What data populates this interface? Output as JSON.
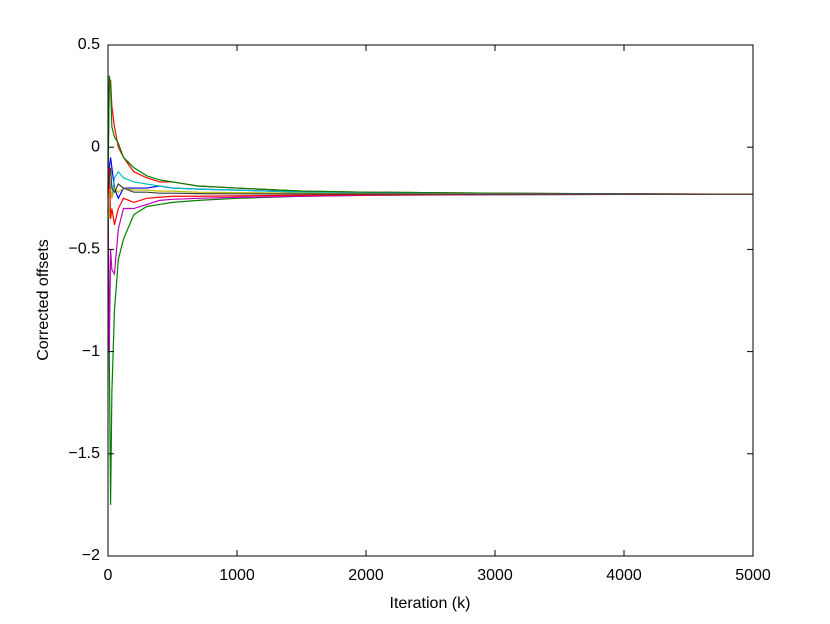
{
  "chart_data": {
    "type": "line",
    "x_label": "Iteration (k)",
    "y_label": "Corrected offsets",
    "x": [
      0,
      10,
      20,
      30,
      50,
      80,
      120,
      200,
      300,
      400,
      500,
      700,
      1000,
      1500,
      2000,
      3000,
      4000,
      5000
    ],
    "series": [
      {
        "color": "#008000",
        "values": [
          -0.2,
          -1.0,
          -1.75,
          -1.2,
          -0.8,
          -0.55,
          -0.45,
          -0.33,
          -0.29,
          -0.28,
          -0.27,
          -0.26,
          -0.25,
          -0.24,
          -0.235,
          -0.232,
          -0.231,
          -0.23
        ]
      },
      {
        "color": "#ff0000",
        "values": [
          -0.1,
          0.3,
          0.33,
          0.2,
          0.1,
          0.0,
          -0.05,
          -0.12,
          -0.15,
          -0.17,
          -0.17,
          -0.19,
          -0.2,
          -0.215,
          -0.22,
          -0.225,
          -0.228,
          -0.23
        ]
      },
      {
        "color": "#008000",
        "values": [
          -0.2,
          0.35,
          0.3,
          0.1,
          0.05,
          0.02,
          -0.05,
          -0.1,
          -0.14,
          -0.16,
          -0.17,
          -0.19,
          -0.2,
          -0.215,
          -0.22,
          -0.225,
          -0.228,
          -0.23
        ]
      },
      {
        "color": "#bf00bf",
        "values": [
          -0.3,
          -1.0,
          -0.5,
          -0.6,
          -0.62,
          -0.4,
          -0.3,
          -0.3,
          -0.28,
          -0.26,
          -0.255,
          -0.25,
          -0.245,
          -0.24,
          -0.235,
          -0.232,
          -0.231,
          -0.23
        ]
      },
      {
        "color": "#0000ff",
        "values": [
          -0.2,
          -0.1,
          -0.05,
          -0.1,
          -0.2,
          -0.25,
          -0.2,
          -0.2,
          -0.2,
          -0.19,
          -0.2,
          -0.205,
          -0.21,
          -0.22,
          -0.225,
          -0.228,
          -0.229,
          -0.23
        ]
      },
      {
        "color": "#00bfbf",
        "values": [
          -0.2,
          -0.15,
          -0.2,
          -0.25,
          -0.15,
          -0.12,
          -0.15,
          -0.17,
          -0.18,
          -0.19,
          -0.2,
          -0.205,
          -0.21,
          -0.22,
          -0.225,
          -0.228,
          -0.229,
          -0.23
        ]
      },
      {
        "color": "#bfbf00",
        "values": [
          -0.3,
          -0.35,
          -0.2,
          -0.25,
          -0.2,
          -0.22,
          -0.2,
          -0.21,
          -0.21,
          -0.215,
          -0.215,
          -0.22,
          -0.222,
          -0.225,
          -0.227,
          -0.229,
          -0.23,
          -0.23
        ]
      },
      {
        "color": "#ff0000",
        "values": [
          -0.25,
          -0.1,
          -0.35,
          -0.3,
          -0.38,
          -0.3,
          -0.25,
          -0.27,
          -0.25,
          -0.245,
          -0.24,
          -0.24,
          -0.238,
          -0.235,
          -0.233,
          -0.231,
          -0.23,
          -0.23
        ]
      },
      {
        "color": "#404040",
        "values": [
          -0.2,
          -0.15,
          -0.1,
          -0.2,
          -0.22,
          -0.18,
          -0.2,
          -0.22,
          -0.22,
          -0.225,
          -0.225,
          -0.227,
          -0.228,
          -0.229,
          -0.229,
          -0.23,
          -0.23,
          -0.23
        ]
      }
    ],
    "xlim": [
      0,
      5000
    ],
    "xticks": [
      0,
      1000,
      2000,
      3000,
      4000,
      5000
    ],
    "ylim": [
      -2,
      0.5
    ],
    "yticks": [
      {
        "value": -2,
        "label": "−2"
      },
      {
        "value": -1.5,
        "label": "−1.5"
      },
      {
        "value": -1,
        "label": "−1"
      },
      {
        "value": -0.5,
        "label": "−0.5"
      },
      0,
      0.5
    ]
  }
}
